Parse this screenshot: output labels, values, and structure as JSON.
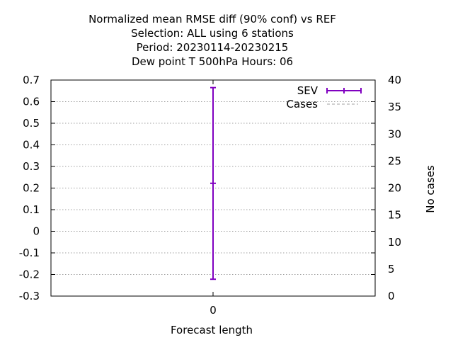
{
  "chart_data": {
    "type": "scatter",
    "title_lines": [
      "Normalized mean RMSE diff (90% conf) vs REF",
      "Selection: ALL using     6 stations",
      "Period: 20230114-20230215",
      "Dew point T 500hPa   Hours:  06"
    ],
    "xlabel": "Forecast length",
    "y2label": "No cases",
    "x_ticks": [
      "0"
    ],
    "ylim": [
      -0.3,
      0.7
    ],
    "y_ticks": [
      "-0.3",
      "-0.2",
      "-0.1",
      "0",
      "0.1",
      "0.2",
      "0.3",
      "0.4",
      "0.5",
      "0.6",
      "0.7"
    ],
    "y2lim": [
      0,
      40
    ],
    "y2_ticks": [
      "0",
      "5",
      "10",
      "15",
      "20",
      "25",
      "30",
      "35",
      "40"
    ],
    "grid": "horizontal dotted",
    "legend_position": "top-right",
    "series": [
      {
        "name": "SEV",
        "color": "#8000c0",
        "style": "errorbar",
        "points": [
          {
            "x": 0,
            "y": 0.222,
            "low": -0.222,
            "high": 0.665
          }
        ]
      },
      {
        "name": "Cases",
        "color": "#a0a0a0",
        "style": "dashed-line",
        "axis": "y2",
        "points": []
      }
    ]
  }
}
